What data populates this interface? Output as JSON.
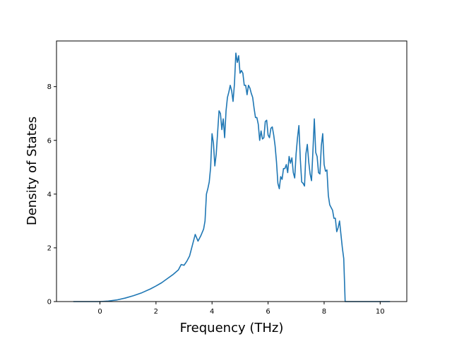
{
  "chart_data": {
    "type": "line",
    "title": "",
    "xlabel": "Frequency (THz)",
    "ylabel": "Density of States",
    "xlim": [
      -1.55,
      10.95
    ],
    "ylim": [
      0,
      9.7
    ],
    "xticks": [
      0,
      2,
      4,
      6,
      8,
      10
    ],
    "yticks": [
      0,
      2,
      4,
      6,
      8
    ],
    "grid": false,
    "legend": "none",
    "series": [
      {
        "color": "#1f77b4",
        "x": [
          -0.95,
          -0.5,
          0.0,
          0.3,
          0.6,
          0.9,
          1.2,
          1.5,
          1.8,
          2.0,
          2.2,
          2.4,
          2.6,
          2.8,
          2.9,
          3.0,
          3.1,
          3.2,
          3.3,
          3.4,
          3.5,
          3.6,
          3.7,
          3.75,
          3.8,
          3.85,
          3.9,
          3.95,
          4.0,
          4.05,
          4.1,
          4.15,
          4.2,
          4.25,
          4.3,
          4.35,
          4.4,
          4.45,
          4.5,
          4.55,
          4.6,
          4.65,
          4.7,
          4.75,
          4.8,
          4.85,
          4.9,
          4.95,
          5.0,
          5.05,
          5.1,
          5.15,
          5.2,
          5.25,
          5.3,
          5.35,
          5.4,
          5.45,
          5.5,
          5.55,
          5.6,
          5.65,
          5.7,
          5.75,
          5.8,
          5.85,
          5.9,
          5.95,
          6.0,
          6.05,
          6.1,
          6.15,
          6.2,
          6.25,
          6.3,
          6.35,
          6.4,
          6.45,
          6.5,
          6.55,
          6.6,
          6.65,
          6.7,
          6.75,
          6.8,
          6.85,
          6.9,
          6.95,
          7.0,
          7.05,
          7.1,
          7.15,
          7.2,
          7.25,
          7.3,
          7.35,
          7.4,
          7.45,
          7.5,
          7.55,
          7.6,
          7.65,
          7.7,
          7.75,
          7.8,
          7.85,
          7.9,
          7.95,
          8.0,
          8.05,
          8.1,
          8.15,
          8.2,
          8.25,
          8.3,
          8.35,
          8.4,
          8.45,
          8.5,
          8.55,
          8.6,
          8.65,
          8.7,
          8.75,
          8.8,
          8.85,
          8.9,
          8.95,
          9.0,
          9.05,
          9.1,
          9.15,
          9.2,
          9.25,
          9.3,
          9.35,
          9.4,
          9.45,
          9.5,
          9.55,
          10.35
        ],
        "values": [
          0.0,
          0.0,
          0.0,
          0.02,
          0.06,
          0.13,
          0.22,
          0.33,
          0.47,
          0.58,
          0.7,
          0.85,
          1.0,
          1.18,
          1.38,
          1.35,
          1.5,
          1.7,
          2.1,
          2.5,
          2.25,
          2.45,
          2.7,
          3.0,
          4.0,
          4.2,
          4.45,
          5.0,
          6.25,
          5.9,
          5.05,
          5.5,
          6.3,
          7.1,
          7.0,
          6.4,
          6.8,
          6.1,
          7.1,
          7.6,
          7.8,
          8.05,
          7.85,
          7.45,
          8.1,
          9.25,
          8.9,
          9.15,
          8.5,
          8.6,
          8.5,
          8.05,
          8.05,
          7.7,
          8.05,
          7.95,
          7.75,
          7.6,
          7.2,
          6.85,
          6.85,
          6.6,
          6.0,
          6.35,
          6.05,
          6.1,
          6.7,
          6.75,
          6.2,
          6.1,
          6.45,
          6.5,
          6.2,
          5.8,
          5.2,
          4.4,
          4.2,
          4.65,
          4.55,
          4.95,
          4.95,
          5.1,
          4.8,
          5.4,
          5.15,
          5.35,
          4.8,
          4.6,
          5.5,
          6.1,
          6.55,
          5.3,
          4.45,
          4.4,
          4.3,
          5.5,
          5.85,
          5.2,
          4.75,
          4.5,
          5.6,
          6.8,
          5.55,
          5.4,
          4.8,
          4.75,
          5.8,
          6.25,
          5.1,
          4.85,
          4.9,
          3.95,
          3.6,
          3.5,
          3.4,
          3.1,
          3.1,
          2.6,
          2.75,
          3.0,
          2.5,
          2.0,
          1.6,
          0.0,
          0.0,
          0.0,
          0.0,
          0.0,
          0.0,
          0.0,
          0.0,
          0.0,
          0.0,
          0.0,
          0.0,
          0.0,
          0.0,
          0.0,
          0.0,
          0.0,
          0.0
        ]
      }
    ]
  }
}
